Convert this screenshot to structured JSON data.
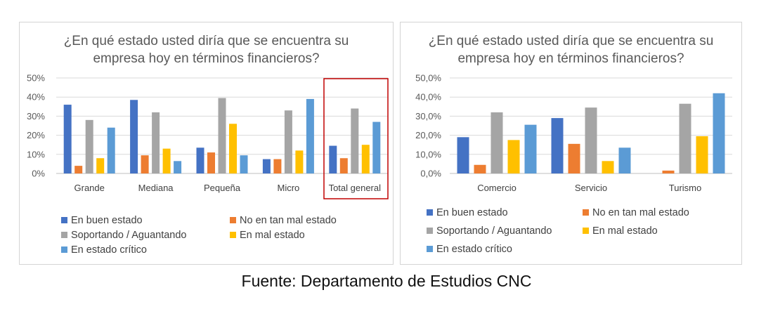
{
  "colors": [
    "#4472C4",
    "#ED7D31",
    "#A5A5A5",
    "#FFC000",
    "#5B9BD5"
  ],
  "highlight_color": "#C00000",
  "source": "Fuente: Departamento de Estudios CNC",
  "chart_data": [
    {
      "type": "bar",
      "title_lines": [
        "¿En qué estado usted diría que se encuentra su",
        "empresa hoy en términos financieros?"
      ],
      "title": "¿En qué estado usted diría que se encuentra su empresa hoy en términos financieros?",
      "categories": [
        "Grande",
        "Mediana",
        "Pequeña",
        "Micro",
        "Total general"
      ],
      "ylim": [
        0,
        50
      ],
      "ytick_labels": [
        "0%",
        "10%",
        "20%",
        "30%",
        "40%",
        "50%"
      ],
      "grid": true,
      "legend_position": "bottom",
      "highlighted_category": "Total general",
      "series": [
        {
          "name": "En buen estado",
          "values": [
            36,
            38.5,
            13.5,
            7.5,
            14.5
          ]
        },
        {
          "name": "No en tan mal estado",
          "values": [
            4,
            9.5,
            11,
            7.5,
            8
          ]
        },
        {
          "name": "Soportando / Aguantando",
          "values": [
            28,
            32,
            39.5,
            33,
            34
          ]
        },
        {
          "name": "En mal estado",
          "values": [
            8,
            13,
            26,
            12,
            15
          ]
        },
        {
          "name": "En estado crítico",
          "values": [
            24,
            6.5,
            9.5,
            39,
            27
          ]
        }
      ]
    },
    {
      "type": "bar",
      "title_lines": [
        "¿En qué estado usted diría que se encuentra su",
        "empresa hoy en términos financieros?"
      ],
      "title": "¿En qué estado usted diría que se encuentra su empresa hoy en términos financieros?",
      "categories": [
        "Comercio",
        "Servicio",
        "Turismo"
      ],
      "ylim": [
        0,
        50
      ],
      "ytick_labels": [
        "0,0%",
        "10,0%",
        "20,0%",
        "30,0%",
        "40,0%",
        "50,0%"
      ],
      "grid": true,
      "legend_position": "bottom",
      "series": [
        {
          "name": "En buen estado",
          "values": [
            19,
            29,
            0
          ]
        },
        {
          "name": "No en tan mal estado",
          "values": [
            4.5,
            15.5,
            1.5
          ]
        },
        {
          "name": "Soportando / Aguantando",
          "values": [
            32,
            34.5,
            36.5
          ]
        },
        {
          "name": "En mal estado",
          "values": [
            17.5,
            6.5,
            19.5
          ]
        },
        {
          "name": "En estado crítico",
          "values": [
            25.5,
            13.5,
            42
          ]
        }
      ]
    }
  ]
}
